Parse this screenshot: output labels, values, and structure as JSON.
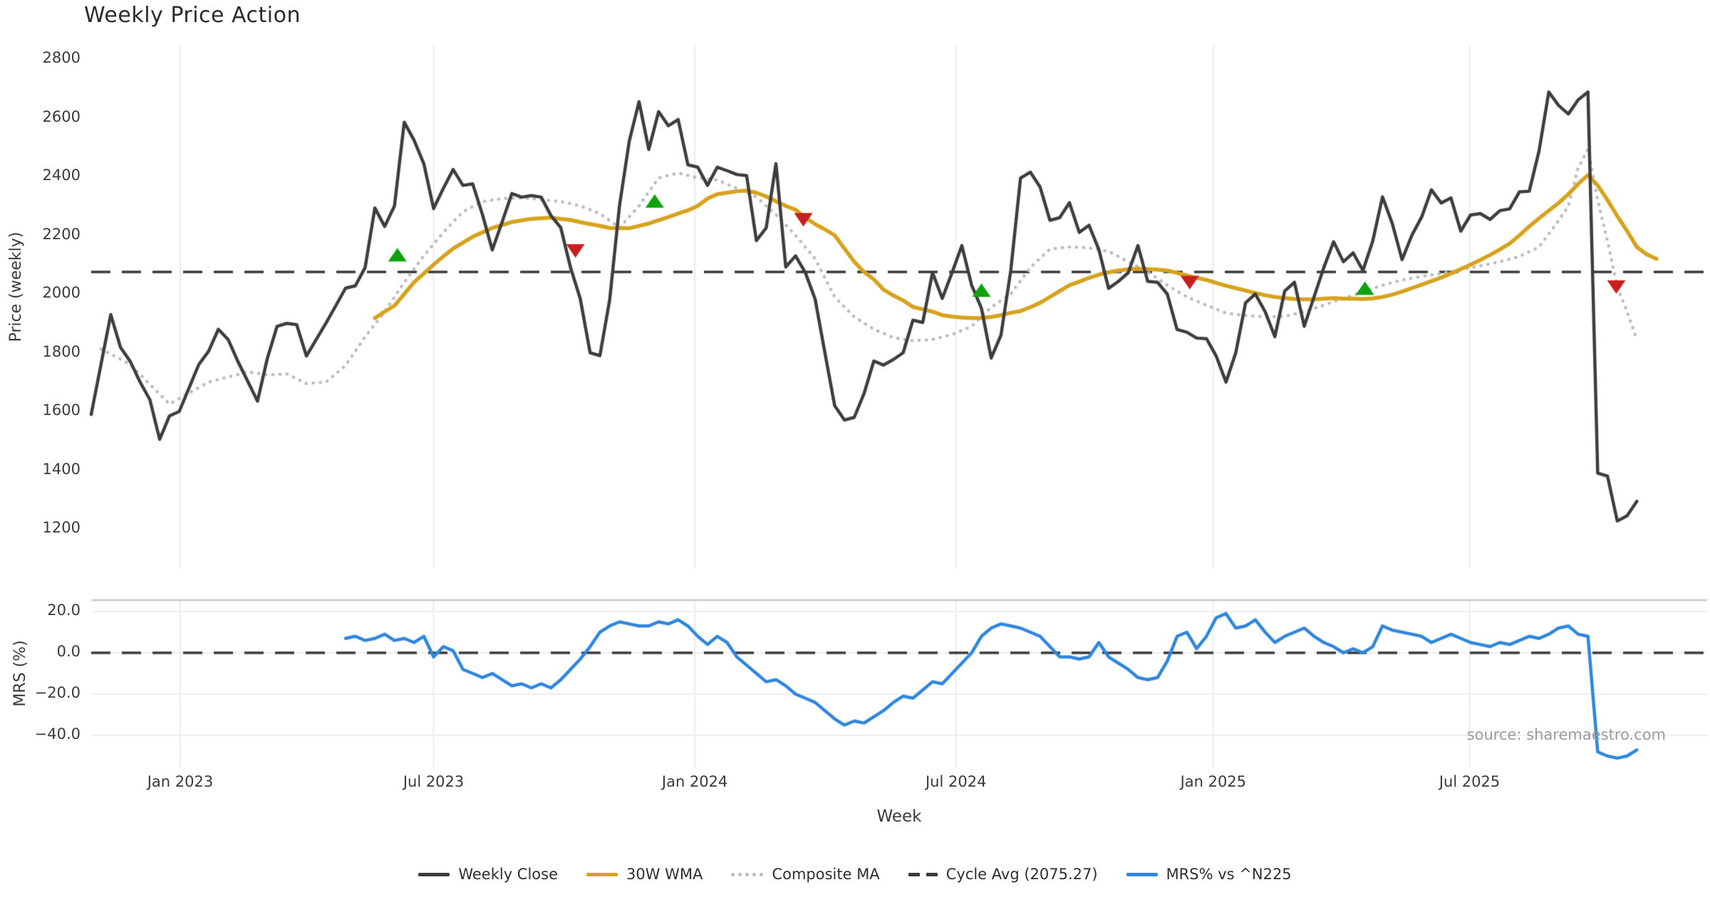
{
  "chart": {
    "title": "Weekly Price Action"
  },
  "main_panel": {
    "y_label": "Price (weekly)",
    "y_ticks": [
      {
        "label": "2800",
        "value": 2800
      },
      {
        "label": "2600",
        "value": 2600
      },
      {
        "label": "2400",
        "value": 2400
      },
      {
        "label": "2200",
        "value": 2200
      },
      {
        "label": "2000",
        "value": 2000
      },
      {
        "label": "1800",
        "value": 1800
      },
      {
        "label": "1600",
        "value": 1600
      },
      {
        "label": "1400",
        "value": 1400
      },
      {
        "label": "1200",
        "value": 1200
      }
    ],
    "cycle_avg_value": 2075.27
  },
  "mrs_panel": {
    "y_label": "MRS (%)",
    "y_ticks": [
      {
        "label": "20.0",
        "value": 20
      },
      {
        "label": "0.0",
        "value": 0
      },
      {
        "label": "−20.0",
        "value": -20
      },
      {
        "label": "−40.0",
        "value": -40
      }
    ]
  },
  "x_axis": {
    "label": "Week",
    "ticks": [
      {
        "label": "Jan 2023",
        "week": 9.1
      },
      {
        "label": "Jul 2023",
        "week": 35.0
      },
      {
        "label": "Jan 2024",
        "week": 61.7
      },
      {
        "label": "Jul 2024",
        "week": 88.4
      },
      {
        "label": "Jan 2025",
        "week": 114.7
      },
      {
        "label": "Jul 2025",
        "week": 140.9
      }
    ]
  },
  "source_text": "source: sharemaestro.com",
  "legend": {
    "items": [
      {
        "label": "Weekly Close",
        "style": "solid",
        "color": "#3d3d3d"
      },
      {
        "label": "30W WMA",
        "style": "solid",
        "color": "#D7A21E"
      },
      {
        "label": "Composite MA",
        "style": "dotted",
        "color": "#BDBDBD"
      },
      {
        "label": "Cycle Avg (2075.27)",
        "style": "dashed",
        "color": "#3a3a3a"
      },
      {
        "label": "MRS% vs ^N225",
        "style": "solid",
        "color": "#2E86DE"
      }
    ]
  },
  "colors": {
    "weekly_close": "#3d3d3d",
    "wma_30": "#D7A21E",
    "composite_ma": "#BDBDBD",
    "cycle_avg": "#3a3a3a",
    "mrs": "#2E86DE",
    "buy_marker": "#0FA20F",
    "sell_marker": "#C8201E",
    "grid": "#ebebeb",
    "mrs_grid": "#ededed",
    "panel_border": "#c9c9c9"
  },
  "chart_data": {
    "type": "line",
    "x_unit": "week_index",
    "x_tick_labels": [
      "Jan 2023",
      "Jul 2023",
      "Jan 2024",
      "Jul 2024",
      "Jan 2025",
      "Jul 2025"
    ],
    "legend_entries": [
      "Weekly Close",
      "30W WMA",
      "Composite MA",
      "Cycle Avg (2075.27)",
      "MRS% vs ^N225"
    ],
    "main": {
      "ylabel": "Price (weekly)",
      "ylim": [
        1060,
        2855
      ],
      "cycle_avg": 2075.27,
      "series": [
        {
          "name": "Weekly Close",
          "color": "#3d3d3d",
          "start_week": 0,
          "values": [
            1590,
            1760,
            1930,
            1818,
            1770,
            1700,
            1640,
            1505,
            1585,
            1600,
            1680,
            1760,
            1805,
            1880,
            1845,
            1770,
            1703,
            1635,
            1780,
            1890,
            1900,
            1896,
            1789,
            1845,
            1901,
            1960,
            2020,
            2028,
            2090,
            2293,
            2230,
            2300,
            2585,
            2524,
            2444,
            2291,
            2360,
            2424,
            2370,
            2375,
            2270,
            2150,
            2245,
            2342,
            2330,
            2335,
            2330,
            2267,
            2226,
            2090,
            1983,
            1800,
            1790,
            1980,
            2300,
            2520,
            2655,
            2492,
            2621,
            2573,
            2594,
            2440,
            2432,
            2370,
            2432,
            2420,
            2407,
            2403,
            2182,
            2225,
            2444,
            2092,
            2130,
            2073,
            1983,
            1800,
            1620,
            1571,
            1580,
            1661,
            1772,
            1758,
            1777,
            1800,
            1911,
            1903,
            2073,
            1985,
            2073,
            2165,
            2030,
            1952,
            1782,
            1860,
            2080,
            2395,
            2415,
            2364,
            2251,
            2260,
            2311,
            2210,
            2234,
            2152,
            2019,
            2043,
            2072,
            2165,
            2043,
            2040,
            2000,
            1879,
            1870,
            1850,
            1848,
            1789,
            1700,
            1800,
            1970,
            2000,
            1940,
            1855,
            2010,
            2040,
            1890,
            1990,
            2090,
            2178,
            2110,
            2140,
            2080,
            2180,
            2331,
            2240,
            2117,
            2200,
            2262,
            2355,
            2310,
            2327,
            2214,
            2269,
            2274,
            2254,
            2284,
            2290,
            2348,
            2350,
            2487,
            2688,
            2642,
            2613,
            2661,
            2688,
            1390,
            1380,
            1227,
            1245,
            1294
          ]
        },
        {
          "name": "30W WMA",
          "color": "#D7A21E",
          "start_week": 29,
          "values": [
            1918,
            1940,
            1960,
            2000,
            2040,
            2070,
            2100,
            2128,
            2155,
            2175,
            2195,
            2210,
            2225,
            2235,
            2245,
            2251,
            2256,
            2258,
            2260,
            2256,
            2252,
            2245,
            2238,
            2232,
            2225,
            2224,
            2224,
            2232,
            2240,
            2251,
            2262,
            2274,
            2285,
            2300,
            2325,
            2340,
            2345,
            2350,
            2352,
            2345,
            2332,
            2316,
            2300,
            2287,
            2260,
            2238,
            2220,
            2200,
            2155,
            2110,
            2075,
            2050,
            2015,
            1995,
            1978,
            1956,
            1948,
            1940,
            1928,
            1923,
            1920,
            1918,
            1919,
            1922,
            1928,
            1936,
            1942,
            1955,
            1970,
            1990,
            2010,
            2030,
            2042,
            2055,
            2066,
            2074,
            2080,
            2084,
            2086,
            2085,
            2083,
            2080,
            2072,
            2063,
            2055,
            2048,
            2038,
            2028,
            2020,
            2012,
            2003,
            1996,
            1990,
            1986,
            1983,
            1982,
            1982,
            1984,
            1986,
            1984,
            1984,
            1983,
            1985,
            1990,
            1998,
            2008,
            2020,
            2032,
            2044,
            2056,
            2070,
            2085,
            2100,
            2116,
            2133,
            2152,
            2172,
            2200,
            2230,
            2258,
            2284,
            2310,
            2340,
            2375,
            2405,
            2370,
            2320,
            2265,
            2215,
            2160,
            2135,
            2120
          ]
        },
        {
          "name": "Composite MA",
          "color": "#BDBDBD",
          "start_week": 1,
          "values": [
            1813,
            1795,
            1778,
            1760,
            1726,
            1692,
            1659,
            1625,
            1644,
            1663,
            1681,
            1700,
            1709,
            1718,
            1726,
            1735,
            1730,
            1725,
            1726,
            1728,
            1712,
            1695,
            1698,
            1700,
            1728,
            1757,
            1805,
            1854,
            1897,
            1940,
            1990,
            2040,
            2085,
            2130,
            2170,
            2210,
            2245,
            2280,
            2298,
            2315,
            2320,
            2325,
            2326,
            2327,
            2325,
            2322,
            2318,
            2315,
            2308,
            2300,
            2287,
            2274,
            2250,
            2226,
            2263,
            2300,
            2348,
            2395,
            2404,
            2412,
            2404,
            2395,
            2392,
            2388,
            2374,
            2360,
            2345,
            2330,
            2300,
            2270,
            2235,
            2200,
            2160,
            2120,
            2055,
            1990,
            1956,
            1922,
            1901,
            1880,
            1866,
            1852,
            1846,
            1841,
            1843,
            1845,
            1854,
            1862,
            1876,
            1890,
            1922,
            1955,
            1978,
            2000,
            2045,
            2090,
            2122,
            2153,
            2157,
            2160,
            2159,
            2157,
            2151,
            2145,
            2128,
            2110,
            2093,
            2075,
            2053,
            2030,
            2010,
            1990,
            1976,
            1962,
            1949,
            1935,
            1931,
            1927,
            1925,
            1922,
            1923,
            1924,
            1932,
            1940,
            1951,
            1962,
            1974,
            1985,
            1996,
            2007,
            2019,
            2030,
            2039,
            2048,
            2054,
            2060,
            2065,
            2070,
            2076,
            2082,
            2089,
            2096,
            2103,
            2110,
            2119,
            2128,
            2144,
            2160,
            2205,
            2250,
            2300,
            2430,
            2492,
            2320,
            2180,
            2025,
            1940,
            1845
          ]
        }
      ],
      "signal_markers": [
        {
          "week": 31.3,
          "price": 2133,
          "type": "buy"
        },
        {
          "week": 49.5,
          "price": 2148,
          "type": "sell"
        },
        {
          "week": 57.6,
          "price": 2316,
          "type": "buy"
        },
        {
          "week": 72.8,
          "price": 2254,
          "type": "sell"
        },
        {
          "week": 91.0,
          "price": 2012,
          "type": "buy"
        },
        {
          "week": 112.3,
          "price": 2040,
          "type": "sell"
        },
        {
          "week": 130.2,
          "price": 2019,
          "type": "buy"
        },
        {
          "week": 155.9,
          "price": 2025,
          "type": "sell"
        }
      ]
    },
    "mrs": {
      "ylabel": "MRS (%)",
      "ylim": [
        -56,
        26
      ],
      "zero_line": 0,
      "series": [
        {
          "name": "MRS% vs ^N225",
          "color": "#2E86DE",
          "start_week": 26,
          "values": [
            7,
            8,
            6,
            7,
            9,
            6,
            7,
            5,
            8,
            -2,
            3,
            1,
            -8,
            -10,
            -12,
            -10,
            -13,
            -16,
            -15,
            -17,
            -15,
            -17,
            -13,
            -8,
            -3,
            3,
            10,
            13,
            15,
            14,
            13,
            13,
            15,
            14,
            16,
            13,
            8,
            4,
            8,
            5,
            -2,
            -6,
            -10,
            -14,
            -13,
            -16,
            -20,
            -22,
            -24,
            -28,
            -32,
            -35,
            -33,
            -34,
            -31,
            -28,
            -24,
            -21,
            -22,
            -18,
            -14,
            -15,
            -10,
            -5,
            0,
            8,
            12,
            14,
            13,
            12,
            10,
            8,
            3,
            -2,
            -2,
            -3,
            -2,
            5,
            -2,
            -5,
            -8,
            -12,
            -13,
            -12,
            -4,
            8,
            10,
            2,
            8,
            17,
            19,
            12,
            13,
            16,
            10,
            5,
            8,
            10,
            12,
            8,
            5,
            3,
            0,
            2,
            0,
            3,
            13,
            11,
            10,
            9,
            8,
            5,
            7,
            9,
            7,
            5,
            4,
            3,
            5,
            4,
            6,
            8,
            7,
            9,
            12,
            13,
            9,
            8,
            -48,
            -50,
            -51,
            -50,
            -47
          ]
        }
      ]
    }
  }
}
